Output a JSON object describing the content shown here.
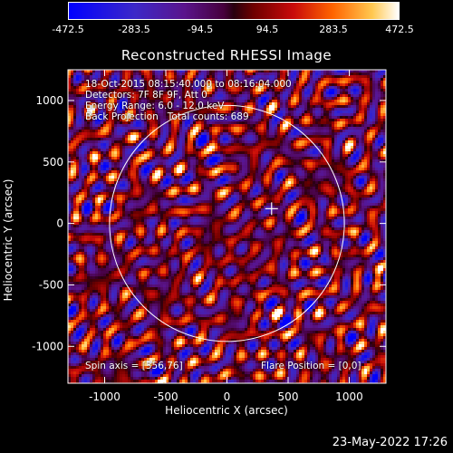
{
  "colorbar": {
    "ticks": [
      "-472.5",
      "-283.5",
      "-94.5",
      "94.5",
      "283.5",
      "472.5"
    ],
    "range": [
      -472.5,
      472.5
    ]
  },
  "chart_data": {
    "type": "heatmap",
    "title": "Reconstructed RHESSI Image",
    "xlabel": "Heliocentric X (arcsec)",
    "ylabel": "Heliocentric Y (arcsec)",
    "xlim": [
      -1300,
      1300
    ],
    "ylim": [
      -1300,
      1250
    ],
    "x_ticks": [
      -1000,
      -500,
      0,
      500,
      1000
    ],
    "y_ticks": [
      -1000,
      -500,
      0,
      500,
      1000
    ],
    "solar_disk_radius": 960,
    "solar_disk_center": [
      0,
      0
    ],
    "crosshair": [
      365,
      120
    ],
    "colormap": "blue-purple-red-yellow-white"
  },
  "info": {
    "line1": "18-Oct-2015 08:15:40.000 to 08:16:04.000",
    "line2": "Detectors: 7F 8F 9F, Att 0",
    "line3": "Energy Range: 6.0 - 12.0 keV",
    "line4": "Back Projection   Total counts: 689",
    "spin_axis": "Spin axis = [356,76]",
    "flare_position": "Flare Position = [0,0]"
  },
  "timestamp": "23-May-2022 17:26"
}
